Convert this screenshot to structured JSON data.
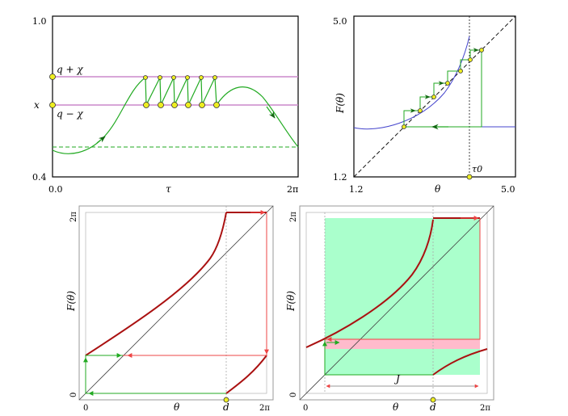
{
  "colors": {
    "green_curve": "#22aa22",
    "violet_line": "#cc88cc",
    "blue_curve": "#4444cc",
    "red_curve": "#aa1111",
    "red_light": "#ee4444",
    "green_fill": "#aaffcc",
    "pink_fill": "#ffbbcc",
    "marker_fill": "#eeee22",
    "dashed": "#444444"
  },
  "panel_tl": {
    "y_top": "1.0",
    "y_bottom": "0.4",
    "x_left": "0.0",
    "x_right": "2π",
    "x_label": "τ",
    "x_side_label": "x",
    "upper_line_label": "q + χ",
    "lower_line_label": "q − χ"
  },
  "panel_tr": {
    "y_top": "5.0",
    "y_bottom": "1.2",
    "x_left": "1.2",
    "x_right": "5.0",
    "x_label": "θ",
    "y_label": "F(θ)",
    "tau_label": "τ0"
  },
  "panel_bl": {
    "y_top": "2π",
    "y_bottom": "0",
    "x_left": "0",
    "x_right": "2π",
    "x_label": "θ",
    "y_label": "F(θ)",
    "d_label": "d"
  },
  "panel_br": {
    "y_top": "2π",
    "y_bottom": "0",
    "x_left": "0",
    "x_right": "2π",
    "x_label": "θ",
    "y_label": "F(θ)",
    "d_label": "d",
    "j_label": "J"
  }
}
